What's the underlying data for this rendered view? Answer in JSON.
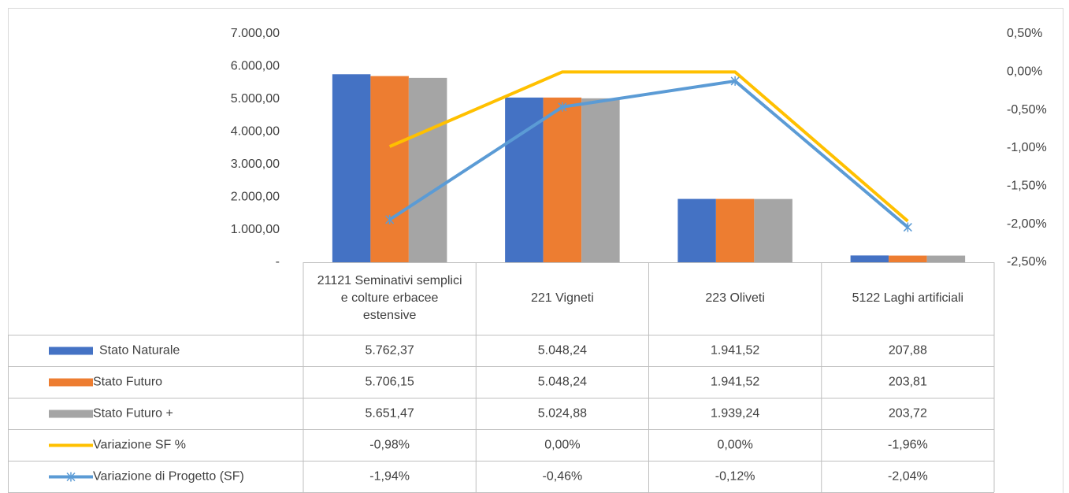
{
  "chart_data": {
    "type": "bar",
    "categories": [
      "21121 Seminativi semplici e colture erbacee estensive",
      "221 Vigneti",
      "223 Oliveti",
      "5122 Laghi artificiali"
    ],
    "ylim": [
      0,
      7000
    ],
    "yticks": [
      {
        "value": 0,
        "label": "-"
      },
      {
        "value": 1000,
        "label": "1.000,00"
      },
      {
        "value": 2000,
        "label": "2.000,00"
      },
      {
        "value": 3000,
        "label": "3.000,00"
      },
      {
        "value": 4000,
        "label": "4.000,00"
      },
      {
        "value": 5000,
        "label": "5.000,00"
      },
      {
        "value": 6000,
        "label": "6.000,00"
      },
      {
        "value": 7000,
        "label": "7.000,00"
      }
    ],
    "y2lim": [
      -2.5,
      0.5
    ],
    "y2ticks": [
      {
        "value": -2.5,
        "label": "-2,50%"
      },
      {
        "value": -2,
        "label": "-2,00%"
      },
      {
        "value": -1.5,
        "label": "-1,50%"
      },
      {
        "value": -1,
        "label": "-1,00%"
      },
      {
        "value": -0.5,
        "label": "-0,50%"
      },
      {
        "value": 0,
        "label": "0,00%"
      },
      {
        "value": 0.5,
        "label": "0,50%"
      }
    ],
    "grid": false,
    "series": [
      {
        "name": "Stato Naturale",
        "type": "bar",
        "color": "#4472c4",
        "values": [
          5762.37,
          5048.24,
          1941.52,
          207.88
        ],
        "value_labels": [
          "5.762,37",
          "5.048,24",
          "1.941,52",
          "207,88"
        ]
      },
      {
        "name": "Stato Futuro",
        "type": "bar",
        "color": "#ed7d31",
        "values": [
          5706.15,
          5048.24,
          1941.52,
          203.81
        ],
        "value_labels": [
          "5.706,15",
          "5.048,24",
          "1.941,52",
          "203,81"
        ]
      },
      {
        "name": "Stato Futuro +",
        "type": "bar",
        "color": "#a5a5a5",
        "values": [
          5651.47,
          5024.88,
          1939.24,
          203.72
        ],
        "value_labels": [
          "5.651,47",
          "5.024,88",
          "1.939,24",
          "203,72"
        ]
      },
      {
        "name": "Variazione SF %",
        "type": "line",
        "axis": "y2",
        "color": "#ffc000",
        "values": [
          -0.98,
          0,
          0,
          -1.96
        ],
        "value_labels": [
          "-0,98%",
          "0,00%",
          "0,00%",
          "-1,96%"
        ]
      },
      {
        "name": "Variazione di Progetto (SF)",
        "type": "line",
        "axis": "y2",
        "color": "#5b9bd5",
        "marker": "x",
        "values": [
          -1.94,
          -0.46,
          -0.12,
          -2.04
        ],
        "value_labels": [
          "-1,94%",
          "-0,46%",
          "-0,12%",
          "-2,04%"
        ]
      }
    ]
  }
}
